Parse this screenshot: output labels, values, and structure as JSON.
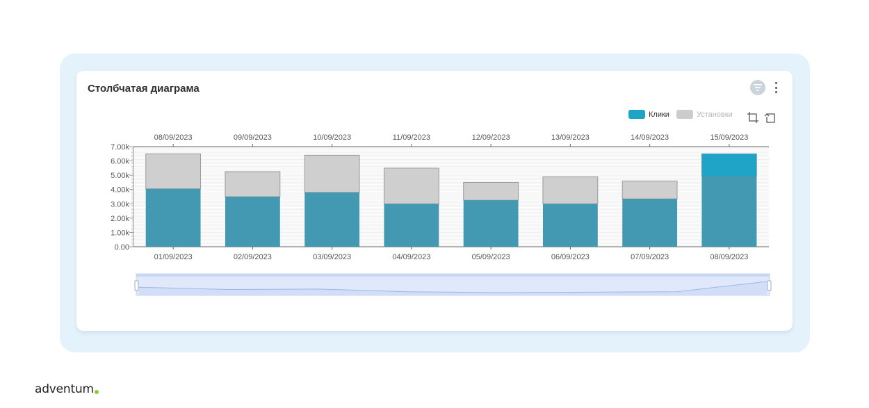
{
  "card": {
    "title": "Столбчатая диаграма"
  },
  "legend": [
    {
      "label": "Клики",
      "color": "#1fa3c6",
      "active": true
    },
    {
      "label": "Установки",
      "color": "#cccccc",
      "active": false
    }
  ],
  "toolbar": {
    "icons": [
      "filter-icon",
      "more-vert-icon",
      "zoom-select-icon",
      "zoom-reset-icon"
    ]
  },
  "logo": {
    "text": "adventum"
  },
  "colors": {
    "clicks_bar": "#4299b1",
    "clicks_highlight": "#1fa3c6",
    "installs_bar": "#cfcfcf",
    "frame": "#e3f2fb",
    "slider": "#dfe9fb",
    "logo_dot": "#8ccc2e"
  },
  "chart_data": {
    "type": "bar",
    "stacked": true,
    "categories": [
      "01/09/2023",
      "02/09/2023",
      "03/09/2023",
      "04/09/2023",
      "05/09/2023",
      "06/09/2023",
      "07/09/2023",
      "08/09/2023"
    ],
    "top_categories": [
      "08/09/2023",
      "09/09/2023",
      "10/09/2023",
      "11/09/2023",
      "12/09/2023",
      "13/09/2023",
      "14/09/2023",
      "15/09/2023"
    ],
    "series": [
      {
        "name": "Клики",
        "values": [
          4050,
          3500,
          3800,
          3000,
          3250,
          3000,
          3350,
          4950
        ]
      },
      {
        "name": "Установки",
        "values": [
          2450,
          1750,
          2600,
          2500,
          1250,
          1900,
          1250,
          1550
        ]
      }
    ],
    "highlight": {
      "index": 7,
      "series": "Клики"
    },
    "yticks": [
      "0.00",
      "1.00k",
      "2.00k",
      "3.00k",
      "4.00k",
      "5.00k",
      "6.00k",
      "7.00k"
    ],
    "ylim": [
      0,
      7000
    ],
    "grid": true,
    "slider_trend": [
      4300,
      4050,
      4100,
      3800,
      3700,
      3750,
      3800,
      4950
    ],
    "title": "Столбчатая диаграма"
  }
}
